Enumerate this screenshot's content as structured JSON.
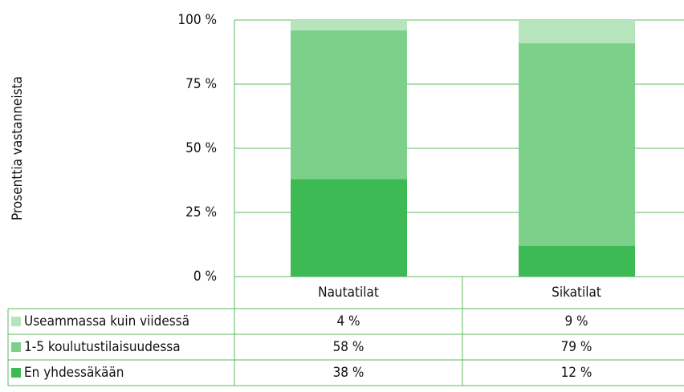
{
  "chart_data": {
    "type": "bar",
    "stacked": true,
    "y_label": "Prosenttia vastanneista",
    "categories": [
      "Nautatilat",
      "Sikatilat"
    ],
    "series": [
      {
        "name": "Useammassa kuin viidessä",
        "color": "#b6e4bd",
        "values": [
          4,
          9
        ],
        "value_labels": [
          "4 %",
          "9 %"
        ]
      },
      {
        "name": "1-5 koulutustilaisuudessa",
        "color": "#7dd08a",
        "values": [
          58,
          79
        ],
        "value_labels": [
          "58 %",
          "79 %"
        ]
      },
      {
        "name": "En yhdessäkään",
        "color": "#3dba53",
        "values": [
          38,
          12
        ],
        "value_labels": [
          "38 %",
          "12 %"
        ]
      }
    ],
    "ylim": [
      0,
      100
    ],
    "yticks": [
      {
        "value": 0,
        "label": "0 %"
      },
      {
        "value": 25,
        "label": "25 %"
      },
      {
        "value": 50,
        "label": "50 %"
      },
      {
        "value": 75,
        "label": "75 %"
      },
      {
        "value": 100,
        "label": "100 %"
      }
    ],
    "grid": true
  }
}
